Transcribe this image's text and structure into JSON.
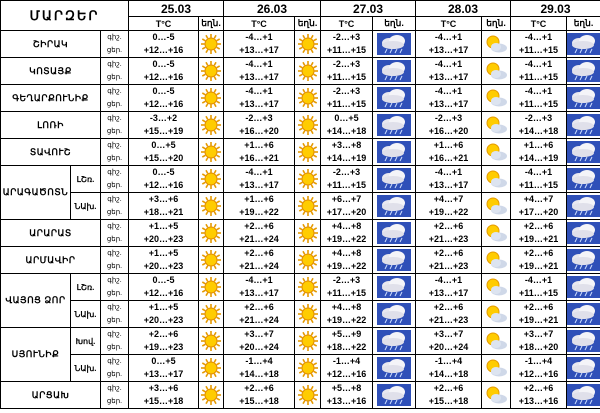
{
  "header": {
    "title": "ՄԱՐԶԵՐ",
    "dates": [
      "25.03",
      "26.03",
      "27.03",
      "28.03",
      "29.03"
    ],
    "temp_label": "T°C",
    "weather_label": "եղն."
  },
  "day_night": [
    "ցեր.",
    "գիշ."
  ],
  "rows": [
    {
      "region": "ՇԻՐԱԿ",
      "t": [
        [
          "0…-5",
          "+12…+16"
        ],
        [
          "-4…+1",
          "+13…+17"
        ],
        [
          "-2…+3",
          "+11…+15"
        ],
        [
          "-4…+1",
          "+13…+17"
        ],
        [
          "-4…+1",
          "+11…+15"
        ]
      ],
      "i": [
        "sun",
        "sun",
        "cloud-rain",
        "partly-cloudy",
        "cloud-rain"
      ]
    },
    {
      "region": "ԿՈՏԱՅՔ",
      "t": [
        [
          "0…-5",
          "+12…+16"
        ],
        [
          "-4…+1",
          "+13…+17"
        ],
        [
          "-2…+3",
          "+11…+15"
        ],
        [
          "-4…+1",
          "+13…+17"
        ],
        [
          "-4…+1",
          "+11…+15"
        ]
      ],
      "i": [
        "sun",
        "sun",
        "cloud-rain",
        "partly-cloudy",
        "cloud-rain"
      ]
    },
    {
      "region": "ԳԵՂԱՐՔՈՒՆԻՔ",
      "t": [
        [
          "0…-5",
          "+12…+16"
        ],
        [
          "-4…+1",
          "+13…+17"
        ],
        [
          "-2…+3",
          "+11…+15"
        ],
        [
          "-4…+1",
          "+13…+17"
        ],
        [
          "-4…+1",
          "+11…+15"
        ]
      ],
      "i": [
        "sun",
        "sun",
        "cloud-rain",
        "partly-cloudy",
        "cloud-rain"
      ]
    },
    {
      "region": "ԼՈՌԻ",
      "t": [
        [
          "-3…+2",
          "+15…+19"
        ],
        [
          "-2…+3",
          "+16…+20"
        ],
        [
          "0…+5",
          "+14…+18"
        ],
        [
          "-2…+3",
          "+16…+20"
        ],
        [
          "-2…+3",
          "+14…+18"
        ]
      ],
      "i": [
        "sun",
        "sun",
        "cloud-rain",
        "partly-cloudy",
        "cloud-rain"
      ]
    },
    {
      "region": "ՏԱՎՈՒՇ",
      "t": [
        [
          "0…+5",
          "+15…+20"
        ],
        [
          "+1…+6",
          "+16…+21"
        ],
        [
          "+3…+8",
          "+14…+19"
        ],
        [
          "+1…+6",
          "+16…+21"
        ],
        [
          "+1…+6",
          "+14…+19"
        ]
      ],
      "i": [
        "sun",
        "sun",
        "cloud-rain",
        "partly-cloudy",
        "cloud-rain"
      ]
    },
    {
      "region": "ԱՐԱԳԱԾՈՏՆ",
      "sub": [
        "ԼՇռ.",
        "ՆԱխ."
      ],
      "t": [
        [
          "0…-5",
          "+12…+16"
        ],
        [
          "-4…+1",
          "+13…+17"
        ],
        [
          "-2…+3",
          "+11…+15"
        ],
        [
          "-4…+1",
          "+13…+17"
        ],
        [
          "-4…+1",
          "+11…+15"
        ]
      ],
      "i": [
        "sun",
        "sun",
        "cloud-rain",
        "partly-cloudy",
        "cloud-rain"
      ],
      "t2": [
        [
          "+3…+6",
          "+18…+21"
        ],
        [
          "+1…+6",
          "+19…+22"
        ],
        [
          "+6…+7",
          "+17…+20"
        ],
        [
          "+4…+7",
          "+19…+22"
        ],
        [
          "+4…+7",
          "+17…+20"
        ]
      ],
      "i2": [
        "sun",
        "sun",
        "cloud-rain",
        "partly-cloudy",
        "cloud-rain"
      ]
    },
    {
      "region": "ԱՐԱՐԱՏ",
      "t": [
        [
          "+1…+5",
          "+20…+23"
        ],
        [
          "+2…+6",
          "+21…+24"
        ],
        [
          "+4…+8",
          "+19…+22"
        ],
        [
          "+2…+6",
          "+21…+23"
        ],
        [
          "+2…+6",
          "+19…+21"
        ]
      ],
      "i": [
        "sun",
        "sun",
        "cloud-rain",
        "partly-cloudy",
        "cloud-rain"
      ]
    },
    {
      "region": "ԱՐՄԱՎԻՐ",
      "t": [
        [
          "+1…+5",
          "+20…+23"
        ],
        [
          "+2…+6",
          "+21…+24"
        ],
        [
          "+4…+8",
          "+19…+22"
        ],
        [
          "+2…+6",
          "+21…+23"
        ],
        [
          "+2…+6",
          "+19…+21"
        ]
      ],
      "i": [
        "sun",
        "sun",
        "cloud-rain",
        "partly-cloudy",
        "cloud-rain"
      ]
    },
    {
      "region": "ՎԱՅՈՑ ՁՈՐ",
      "sub": [
        "ԼՇռ.",
        "ՆԱխ."
      ],
      "t": [
        [
          "0…-5",
          "+12…+16"
        ],
        [
          "-4…+1",
          "+13…+17"
        ],
        [
          "-2…+3",
          "+11…+15"
        ],
        [
          "-4…+1",
          "+13…+17"
        ],
        [
          "-4…+1",
          "+11…+15"
        ]
      ],
      "i": [
        "sun",
        "sun",
        "cloud-rain",
        "partly-cloudy",
        "cloud-rain"
      ],
      "t2": [
        [
          "+1…+5",
          "+20…+23"
        ],
        [
          "+2…+6",
          "+21…+24"
        ],
        [
          "+4…+8",
          "+19…+22"
        ],
        [
          "+2…+6",
          "+21…+23"
        ],
        [
          "+2…+6",
          "+19…+21"
        ]
      ],
      "i2": [
        "sun",
        "sun",
        "cloud-rain",
        "partly-cloudy",
        "cloud-rain"
      ]
    },
    {
      "region": "ՍՅՈՒՆԻՔ",
      "sub": [
        "Խով.",
        "ՆԱխ."
      ],
      "t": [
        [
          "+2…+6",
          "+19…+23"
        ],
        [
          "+3…+7",
          "+20…+24"
        ],
        [
          "+5…+9",
          "+18…+22"
        ],
        [
          "+3…+7",
          "+20…+24"
        ],
        [
          "+3…+7",
          "+18…+20"
        ]
      ],
      "i": [
        "sun",
        "sun",
        "cloud-rain",
        "partly-cloudy",
        "cloud-rain"
      ],
      "t2": [
        [
          "0…+5",
          "+13…+17"
        ],
        [
          "-1…+4",
          "+14…+18"
        ],
        [
          "-1…+4",
          "+12…+16"
        ],
        [
          "-1…+4",
          "+14…+18"
        ],
        [
          "-1…+4",
          "+12…+16"
        ]
      ],
      "i2": [
        "sun",
        "sun",
        "cloud-rain",
        "partly-cloudy",
        "cloud-rain"
      ]
    },
    {
      "region": "ԱՐՑԱԽ",
      "t": [
        [
          "+3…+6",
          "+15…+18"
        ],
        [
          "+2…+6",
          "+15…+18"
        ],
        [
          "+5…+8",
          "+13…+16"
        ],
        [
          "+2…+6",
          "+15…+18"
        ],
        [
          "+2…+6",
          "+13…+16"
        ]
      ],
      "i": [
        "sun",
        "sun",
        "cloud-rain",
        "partly-cloudy",
        "cloud-rain"
      ]
    }
  ]
}
